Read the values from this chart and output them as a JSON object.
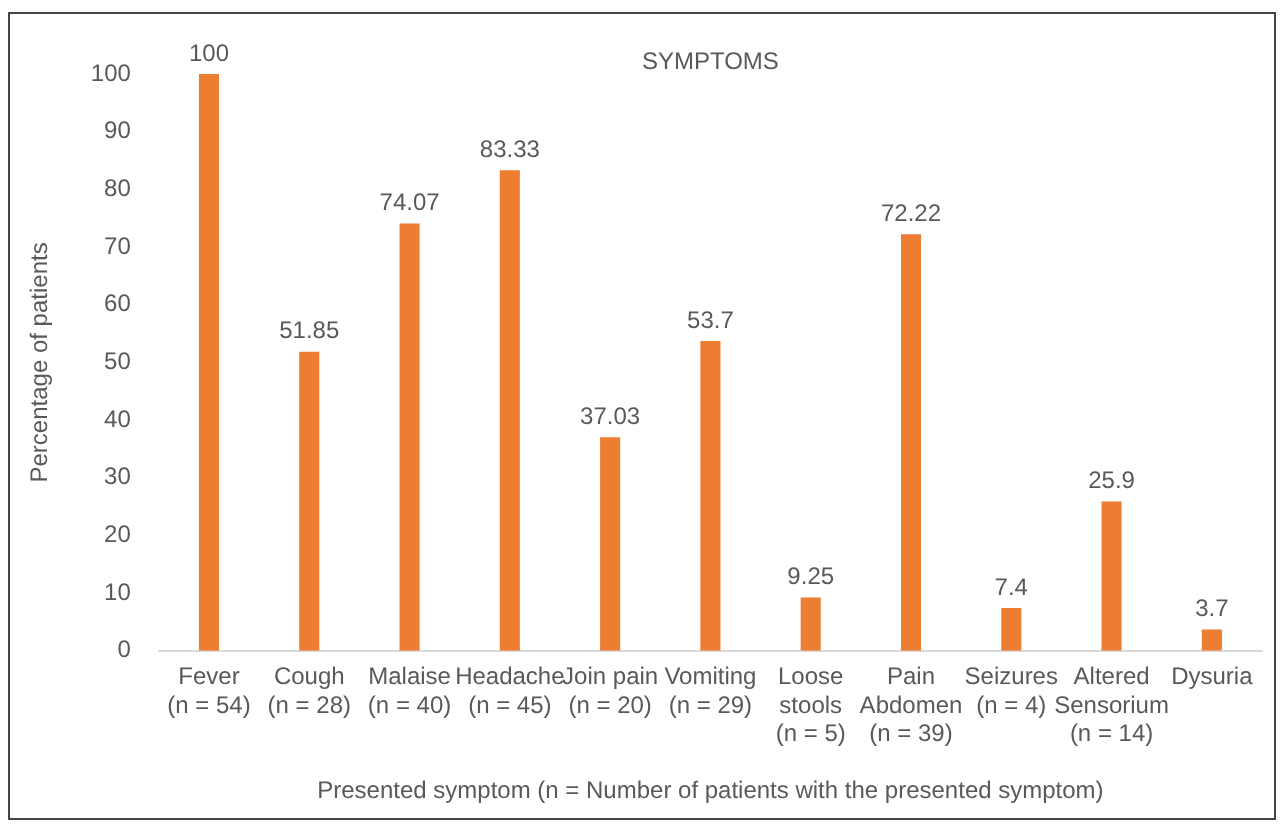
{
  "chart_data": {
    "type": "bar",
    "title": "SYMPTOMS",
    "xlabel": "Presented symptom (n = Number of patients with the presented symptom)",
    "ylabel": "Percentage of patients",
    "categories": [
      "Fever\n(n = 54)",
      "Cough\n(n = 28)",
      "Malaise\n(n = 40)",
      "Headache\n(n = 45)",
      "Join pain\n(n = 20)",
      "Vomiting\n(n = 29)",
      "Loose\nstools\n(n = 5)",
      "Pain\nAbdomen\n(n = 39)",
      "Seizures\n(n = 4)",
      "Altered\nSensorium\n(n = 14)",
      "Dysuria"
    ],
    "values": [
      100,
      51.85,
      74.07,
      83.33,
      37.03,
      53.7,
      9.25,
      72.22,
      7.4,
      25.9,
      3.7
    ],
    "color": "#ed7d31",
    "ylim": [
      0,
      100
    ],
    "yticks": [
      0,
      10,
      20,
      30,
      40,
      50,
      60,
      70,
      80,
      90,
      100
    ],
    "grid": false,
    "legend": false,
    "data_labels": true
  }
}
